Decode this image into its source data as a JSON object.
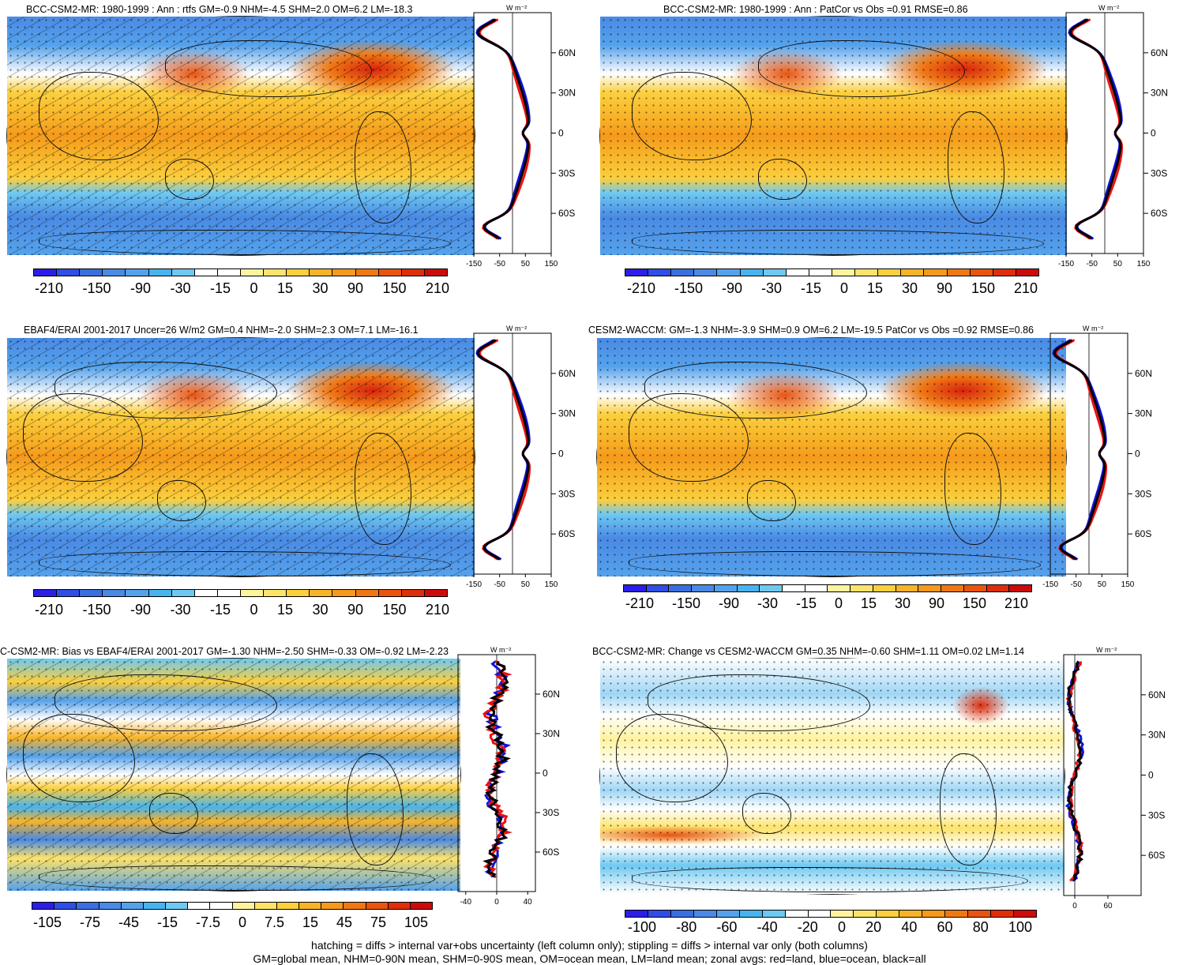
{
  "panels": [
    {
      "title": "BCC-CSM2-MR: 1980-1999 : Ann : rtfs GM=-0.9 NHM=-4.5 SHM=2.0 OM=6.2 LM=-18.3",
      "tone": "a",
      "hatch": true
    },
    {
      "title": "BCC-CSM2-MR: 1980-1999 : Ann : PatCor vs Obs =0.91 RMSE=0.86",
      "tone": "a",
      "hatch": false
    },
    {
      "title": "EBAF4/ERAI 2001-2017 Uncer=26 W/m2 GM=0.4 NHM=-2.0 SHM=2.3 OM=7.1 LM=-16.1",
      "tone": "a",
      "hatch": true
    },
    {
      "title": "CESM2-WACCM: GM=-1.3 NHM=-3.9 SHM=0.9 OM=6.2 LM=-19.5 PatCor vs Obs =0.92 RMSE=0.86",
      "tone": "a",
      "hatch": false
    },
    {
      "title": "C-CSM2-MR: Bias vs EBAF4/ERAI 2001-2017 GM=-1.30 NHM=-2.50 SHM=-0.33 OM=-0.92 LM=-2.23",
      "tone": "b",
      "hatch": true
    },
    {
      "title": "BCC-CSM2-MR: Change vs CESM2-WACCM GM=0.35 NHM=-0.60 SHM=1.11 OM=0.02 LM=1.14",
      "tone": "c",
      "hatch": false
    }
  ],
  "profile_unit": "W m⁻²",
  "lat_ticks": [
    "60N",
    "30N",
    "0",
    "30S",
    "60S"
  ],
  "profile_xticks": {
    "main": [
      "-150",
      "-50",
      "50",
      "150"
    ],
    "bias": [
      "-40",
      "0",
      "40"
    ],
    "change": [
      "0",
      "60"
    ]
  },
  "colorbar_labels": {
    "main": [
      "-210",
      "-150",
      "-90",
      "-30",
      "-15",
      "0",
      "15",
      "30",
      "90",
      "150",
      "210"
    ],
    "bias": [
      "-105",
      "-75",
      "-45",
      "-15",
      "-7.5",
      "0",
      "7.5",
      "15",
      "45",
      "75",
      "105"
    ],
    "change": [
      "-100",
      "-80",
      "-60",
      "-40",
      "-20",
      "0",
      "20",
      "40",
      "60",
      "80",
      "100"
    ]
  },
  "colorbar_colors": [
    "#2b1ee8",
    "#2f4ee6",
    "#3b6fe0",
    "#4a8ae4",
    "#55a2ec",
    "#48b4ef",
    "#6ec9f2",
    "#ffffff",
    "#ffffff",
    "#fff3a0",
    "#fde36a",
    "#fbcf3e",
    "#f8b428",
    "#f59a1c",
    "#f07814",
    "#e9540e",
    "#de2e0c",
    "#cc0b0b"
  ],
  "legend_colors": {
    "land": "#ee1111",
    "ocean": "#1111dd",
    "all": "#000000"
  },
  "footer": [
    "hatching = diffs > internal var+obs uncertainty (left column only); stippling = diffs > internal var only (both columns)",
    "GM=global mean, NHM=0-90N mean, SHM=0-90S mean, OM=ocean mean, LM=land mean; zonal avgs: red=land, blue=ocean, black=all"
  ],
  "chart_data": [
    {
      "type": "heatmap",
      "title": "BCC-CSM2-MR: 1980-1999 : Ann : rtfs GM=-0.9 NHM=-4.5 SHM=2.0 OM=6.2 LM=-18.3",
      "colorbar": [
        -210,
        -150,
        -90,
        -30,
        -15,
        0,
        15,
        30,
        90,
        150,
        210
      ],
      "zonal_ylabels": [
        "60N",
        "30N",
        "0",
        "30S",
        "60S"
      ],
      "zonal_xticks": [
        -150,
        -50,
        50,
        150
      ],
      "zonal_unit": "W m-2",
      "stats": {
        "GM": -0.9,
        "NHM": -4.5,
        "SHM": 2.0,
        "OM": 6.2,
        "LM": -18.3
      }
    },
    {
      "type": "heatmap",
      "title": "BCC-CSM2-MR: 1980-1999 : Ann : PatCor vs Obs =0.91 RMSE=0.86",
      "colorbar": [
        -210,
        -150,
        -90,
        -30,
        -15,
        0,
        15,
        30,
        90,
        150,
        210
      ],
      "zonal_xticks": [
        -150,
        -50,
        50,
        150
      ],
      "stats": {
        "PatCor": 0.91,
        "RMSE": 0.86
      }
    },
    {
      "type": "heatmap",
      "title": "EBAF4/ERAI 2001-2017 Uncer=26 W/m2 GM=0.4 NHM=-2.0 SHM=2.3 OM=7.1 LM=-16.1",
      "colorbar": [
        -210,
        -150,
        -90,
        -30,
        -15,
        0,
        15,
        30,
        90,
        150,
        210
      ],
      "zonal_xticks": [
        -150,
        -50,
        50,
        150
      ],
      "stats": {
        "Uncer": 26,
        "GM": 0.4,
        "NHM": -2.0,
        "SHM": 2.3,
        "OM": 7.1,
        "LM": -16.1
      }
    },
    {
      "type": "heatmap",
      "title": "CESM2-WACCM: GM=-1.3 NHM=-3.9 SHM=0.9 OM=6.2 LM=-19.5 PatCor vs Obs =0.92 RMSE=0.86",
      "colorbar": [
        -210,
        -150,
        -90,
        -30,
        -15,
        0,
        15,
        30,
        90,
        150,
        210
      ],
      "zonal_xticks": [
        -150,
        -50,
        50,
        150
      ],
      "stats": {
        "GM": -1.3,
        "NHM": -3.9,
        "SHM": 0.9,
        "OM": 6.2,
        "LM": -19.5,
        "PatCor": 0.92,
        "RMSE": 0.86
      }
    },
    {
      "type": "heatmap",
      "title": "C-CSM2-MR: Bias vs EBAF4/ERAI 2001-2017 GM=-1.30 NHM=-2.50 SHM=-0.33 OM=-0.92 LM=-2.23",
      "colorbar": [
        -105,
        -75,
        -45,
        -15,
        -7.5,
        0,
        7.5,
        15,
        45,
        75,
        105
      ],
      "zonal_xticks": [
        -40,
        0,
        40
      ],
      "stats": {
        "GM": -1.3,
        "NHM": -2.5,
        "SHM": -0.33,
        "OM": -0.92,
        "LM": -2.23
      }
    },
    {
      "type": "heatmap",
      "title": "BCC-CSM2-MR: Change vs CESM2-WACCM GM=0.35 NHM=-0.60 SHM=1.11 OM=0.02 LM=1.14",
      "colorbar": [
        -100,
        -80,
        -60,
        -40,
        -20,
        0,
        20,
        40,
        60,
        80,
        100
      ],
      "zonal_xticks": [
        0,
        60
      ],
      "stats": {
        "GM": 0.35,
        "NHM": -0.6,
        "SHM": 1.11,
        "OM": 0.02,
        "LM": 1.14
      }
    }
  ]
}
